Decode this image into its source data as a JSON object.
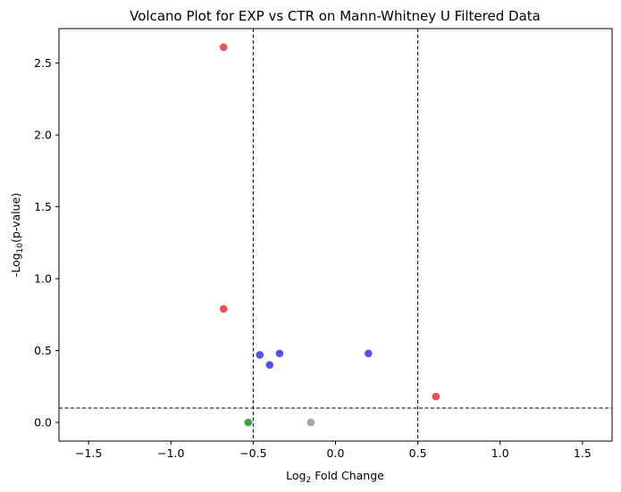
{
  "chart_data": {
    "type": "scatter",
    "title": "Volcano Plot for EXP vs CTR on Mann-Whitney U Filtered Data",
    "xlabel": {
      "prefix": "Log",
      "sub": "2",
      "suffix": " Fold Change"
    },
    "ylabel": {
      "prefix": "-Log",
      "sub": "10",
      "suffix": "(p-value)"
    },
    "xlim": [
      -1.68,
      1.68
    ],
    "ylim": [
      -0.13,
      2.74
    ],
    "xticks": [
      -1.5,
      -1.0,
      -0.5,
      0.0,
      0.5,
      1.0,
      1.5
    ],
    "xtick_labels": [
      "−1.5",
      "−1.0",
      "−0.5",
      "0.0",
      "0.5",
      "1.0",
      "1.5"
    ],
    "yticks": [
      0.0,
      0.5,
      1.0,
      1.5,
      2.0,
      2.5
    ],
    "ytick_labels": [
      "0.0",
      "0.5",
      "1.0",
      "1.5",
      "2.0",
      "2.5"
    ],
    "grid": false,
    "threshold_lines": {
      "x": [
        -0.5,
        0.5
      ],
      "y": [
        0.1
      ]
    },
    "points": [
      {
        "x": -0.68,
        "y": 2.61,
        "color": "#e84a4a"
      },
      {
        "x": -0.68,
        "y": 0.79,
        "color": "#e84a4a"
      },
      {
        "x": -0.46,
        "y": 0.47,
        "color": "#4a4ae8"
      },
      {
        "x": -0.4,
        "y": 0.4,
        "color": "#4a4ae8"
      },
      {
        "x": -0.34,
        "y": 0.48,
        "color": "#4a4ae8"
      },
      {
        "x": 0.2,
        "y": 0.48,
        "color": "#4a4ae8"
      },
      {
        "x": 0.61,
        "y": 0.18,
        "color": "#e84a4a"
      },
      {
        "x": -0.53,
        "y": 0.0,
        "color": "#3a9a3a"
      },
      {
        "x": -0.15,
        "y": 0.0,
        "color": "#a0a0a0"
      }
    ]
  }
}
